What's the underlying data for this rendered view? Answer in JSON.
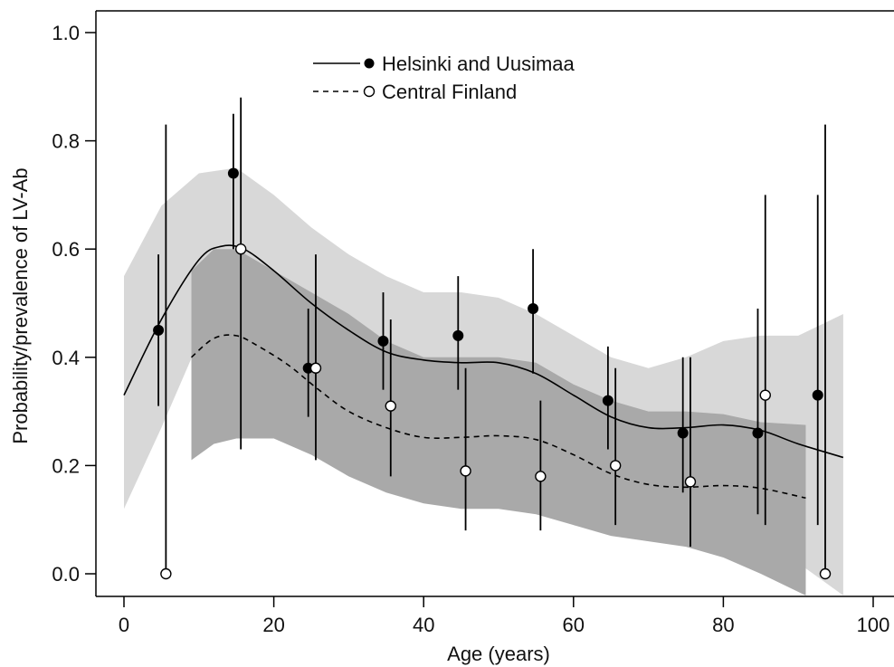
{
  "chart_data": {
    "type": "line",
    "title": "",
    "xlabel": "Age (years)",
    "ylabel": "Probability/prevalence of LV-Ab",
    "xlim": [
      0,
      100
    ],
    "ylim": [
      0.0,
      1.0
    ],
    "xticks": [
      "0",
      "20",
      "40",
      "60",
      "80",
      "100"
    ],
    "yticks": [
      "0.0",
      "0.2",
      "0.4",
      "0.6",
      "0.8",
      "1.0"
    ],
    "legend_position": "top-center",
    "grid": false,
    "series": [
      {
        "name": "Helsinki and Uusimaa",
        "line_style": "solid",
        "marker": "filled-circle",
        "color": "#000000",
        "band_color": "#d8d8d8",
        "curve": {
          "x": [
            0,
            5,
            10,
            13,
            16,
            20,
            25,
            30,
            35,
            40,
            45,
            50,
            55,
            60,
            65,
            70,
            75,
            80,
            85,
            90,
            96
          ],
          "y": [
            0.33,
            0.47,
            0.58,
            0.605,
            0.6,
            0.56,
            0.5,
            0.45,
            0.41,
            0.395,
            0.39,
            0.39,
            0.37,
            0.33,
            0.29,
            0.27,
            0.27,
            0.275,
            0.265,
            0.24,
            0.215
          ]
        },
        "band": {
          "x": [
            0,
            5,
            10,
            15,
            20,
            25,
            30,
            35,
            40,
            45,
            50,
            55,
            60,
            65,
            70,
            75,
            80,
            85,
            90,
            96
          ],
          "upper": [
            0.55,
            0.68,
            0.74,
            0.75,
            0.7,
            0.64,
            0.59,
            0.55,
            0.52,
            0.52,
            0.51,
            0.48,
            0.44,
            0.4,
            0.38,
            0.4,
            0.43,
            0.44,
            0.44,
            0.48
          ],
          "lower": [
            0.12,
            0.27,
            0.43,
            0.45,
            0.42,
            0.35,
            0.3,
            0.27,
            0.26,
            0.25,
            0.27,
            0.25,
            0.2,
            0.16,
            0.14,
            0.13,
            0.11,
            0.08,
            0.02,
            -0.04
          ]
        },
        "points": [
          {
            "x": 4.6,
            "y": 0.45,
            "lo": 0.31,
            "hi": 0.59
          },
          {
            "x": 14.6,
            "y": 0.74,
            "lo": 0.6,
            "hi": 0.85
          },
          {
            "x": 24.6,
            "y": 0.38,
            "lo": 0.29,
            "hi": 0.49
          },
          {
            "x": 34.6,
            "y": 0.43,
            "lo": 0.34,
            "hi": 0.52
          },
          {
            "x": 44.6,
            "y": 0.44,
            "lo": 0.34,
            "hi": 0.55
          },
          {
            "x": 54.6,
            "y": 0.49,
            "lo": 0.37,
            "hi": 0.6
          },
          {
            "x": 64.6,
            "y": 0.32,
            "lo": 0.23,
            "hi": 0.42
          },
          {
            "x": 74.6,
            "y": 0.26,
            "lo": 0.15,
            "hi": 0.4
          },
          {
            "x": 84.6,
            "y": 0.26,
            "lo": 0.11,
            "hi": 0.49
          },
          {
            "x": 92.6,
            "y": 0.33,
            "lo": 0.09,
            "hi": 0.7
          }
        ]
      },
      {
        "name": "Central Finland",
        "line_style": "dashed",
        "marker": "open-circle",
        "color": "#000000",
        "band_color": "#a9a9a9",
        "curve": {
          "x": [
            9,
            12,
            15,
            18,
            22,
            26,
            30,
            35,
            40,
            45,
            50,
            55,
            60,
            65,
            70,
            75,
            80,
            85,
            91
          ],
          "y": [
            0.4,
            0.435,
            0.44,
            0.42,
            0.385,
            0.34,
            0.3,
            0.27,
            0.252,
            0.252,
            0.255,
            0.248,
            0.22,
            0.185,
            0.165,
            0.16,
            0.163,
            0.158,
            0.14
          ]
        },
        "band": {
          "x": [
            9,
            12,
            15,
            20,
            25,
            30,
            35,
            40,
            45,
            50,
            55,
            60,
            65,
            70,
            75,
            80,
            85,
            91
          ],
          "upper": [
            0.56,
            0.6,
            0.6,
            0.56,
            0.52,
            0.48,
            0.43,
            0.4,
            0.4,
            0.4,
            0.39,
            0.35,
            0.32,
            0.3,
            0.3,
            0.295,
            0.28,
            0.275
          ],
          "lower": [
            0.21,
            0.24,
            0.25,
            0.25,
            0.22,
            0.18,
            0.15,
            0.13,
            0.12,
            0.12,
            0.11,
            0.09,
            0.07,
            0.06,
            0.05,
            0.03,
            0.0,
            -0.04
          ]
        },
        "points": [
          {
            "x": 5.6,
            "y": 0.0,
            "lo": 0.0,
            "hi": 0.83
          },
          {
            "x": 15.6,
            "y": 0.6,
            "lo": 0.23,
            "hi": 0.88
          },
          {
            "x": 25.6,
            "y": 0.38,
            "lo": 0.21,
            "hi": 0.59
          },
          {
            "x": 35.6,
            "y": 0.31,
            "lo": 0.18,
            "hi": 0.47
          },
          {
            "x": 45.6,
            "y": 0.19,
            "lo": 0.08,
            "hi": 0.38
          },
          {
            "x": 55.6,
            "y": 0.18,
            "lo": 0.08,
            "hi": 0.32
          },
          {
            "x": 65.6,
            "y": 0.2,
            "lo": 0.09,
            "hi": 0.38
          },
          {
            "x": 75.6,
            "y": 0.17,
            "lo": 0.05,
            "hi": 0.4
          },
          {
            "x": 85.6,
            "y": 0.33,
            "lo": 0.09,
            "hi": 0.7
          },
          {
            "x": 93.6,
            "y": 0.0,
            "lo": 0.0,
            "hi": 0.83
          }
        ]
      }
    ]
  }
}
